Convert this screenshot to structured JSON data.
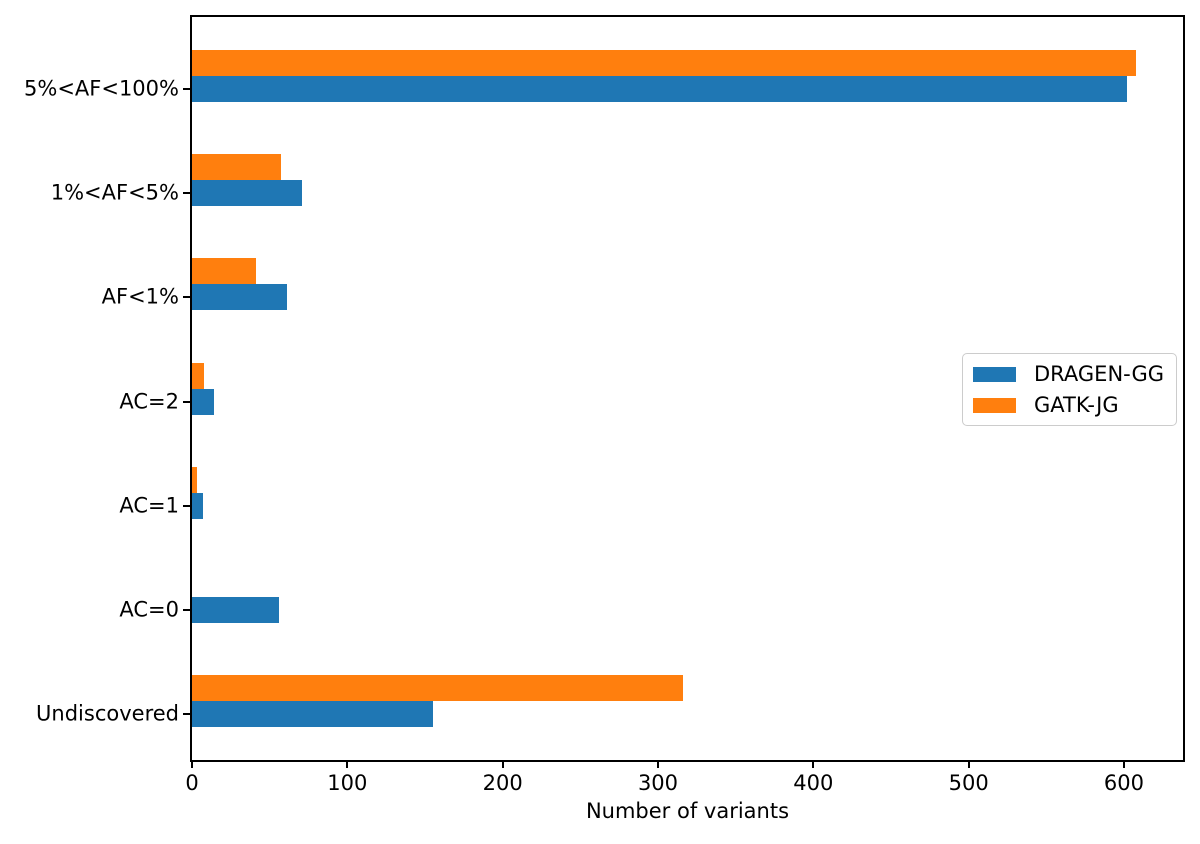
{
  "chart_data": {
    "type": "bar",
    "orientation": "horizontal",
    "title": "",
    "xlabel": "Number of variants",
    "ylabel": "",
    "categories": [
      "5%<AF<100%",
      "1%<AF<5%",
      "AF<1%",
      "AC=2",
      "AC=1",
      "AC=0",
      "Undiscovered"
    ],
    "series": [
      {
        "name": "DRAGEN-GG",
        "color": "#1f77b4",
        "values": [
          602,
          71,
          61,
          14,
          7,
          56,
          155
        ]
      },
      {
        "name": "GATK-JG",
        "color": "#ff7f0e",
        "values": [
          608,
          57,
          41,
          8,
          3,
          0,
          316
        ]
      }
    ],
    "xticks": [
      0,
      100,
      200,
      300,
      400,
      500,
      600
    ],
    "xtick_labels": [
      "0",
      "100",
      "200",
      "300",
      "400",
      "500",
      "600"
    ],
    "xlim": [
      0,
      638
    ],
    "grid": false,
    "legend_position": "center right",
    "background_color": "#ffffff",
    "text_color": "#000000",
    "spine_color": "#000000",
    "legend_border_color": "#cccccc"
  }
}
